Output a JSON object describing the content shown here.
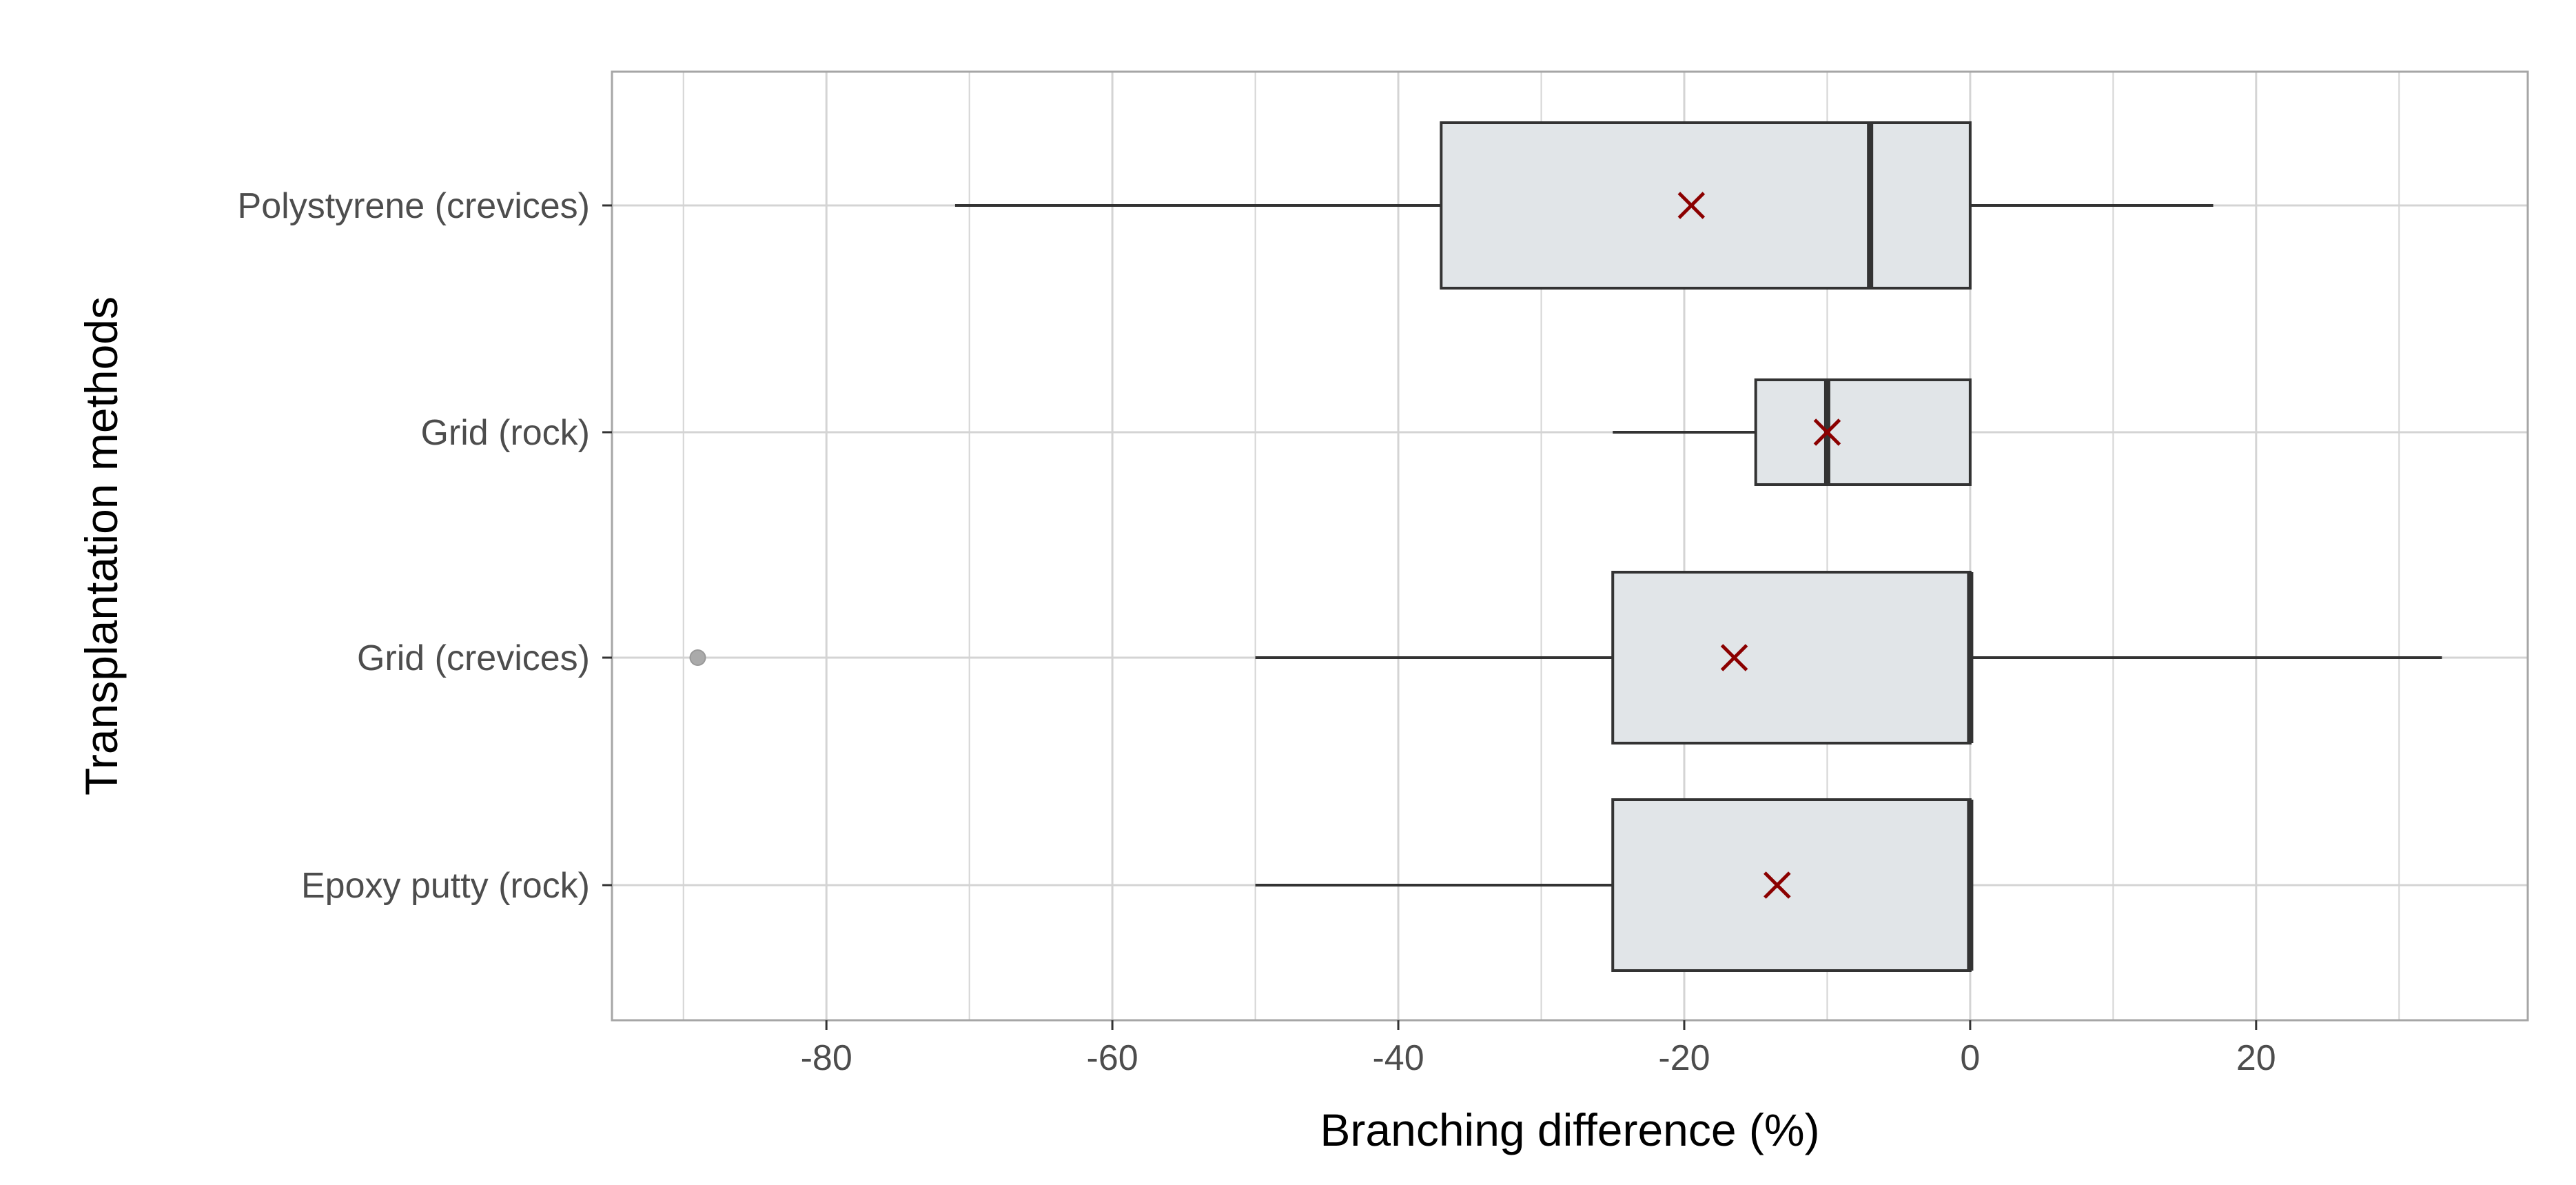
{
  "chart_data": {
    "type": "boxplot",
    "orientation": "horizontal",
    "xlabel": "Branching difference (%)",
    "ylabel": "Transplantation methods",
    "xlim": [
      -95,
      39
    ],
    "x_ticks": [
      -80,
      -60,
      -40,
      -20,
      0,
      20
    ],
    "x_tick_labels": [
      "-80",
      "-60",
      "-40",
      "-20",
      "0",
      "20"
    ],
    "grid": true,
    "legend": "none",
    "colors": {
      "box_fill": "#e1e5e8",
      "box_stroke": "#333333",
      "mean_marker": "#8b0000",
      "outlier": "#aaaaaa",
      "grid": "#d4d4d4",
      "panel_border": "#a6a6a6"
    },
    "categories": [
      "Polystyrene (crevices)",
      "Grid (rock)",
      "Grid (crevices)",
      "Epoxy putty (rock)"
    ],
    "boxes": [
      {
        "category": "Polystyrene (crevices)",
        "whisker_low": -71,
        "q1": -37,
        "median": -7,
        "q3": 0,
        "whisker_high": 17,
        "mean": -19.5,
        "outliers": []
      },
      {
        "category": "Grid (rock)",
        "whisker_low": -25,
        "q1": -15,
        "median": -10,
        "q3": 0,
        "whisker_high": 0,
        "mean": -10,
        "outliers": []
      },
      {
        "category": "Grid (crevices)",
        "whisker_low": -50,
        "q1": -25,
        "median": 0,
        "q3": 0,
        "whisker_high": 33,
        "mean": -16.5,
        "outliers": [
          -89
        ]
      },
      {
        "category": "Epoxy putty (rock)",
        "whisker_low": -50,
        "q1": -25,
        "median": 0,
        "q3": 0,
        "whisker_high": 0,
        "mean": -13.5,
        "outliers": []
      }
    ]
  }
}
